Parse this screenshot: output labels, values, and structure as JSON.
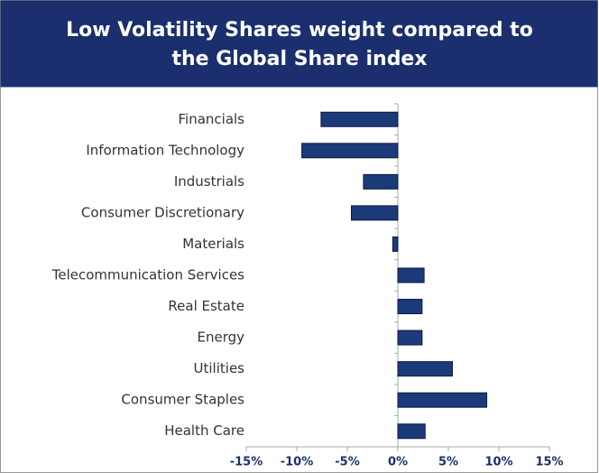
{
  "chart_data": {
    "type": "barh",
    "title": "Low Volatility Shares weight compared to the Global Share index",
    "categories": [
      "Financials",
      "Information Technology",
      "Industrials",
      "Consumer Discretionary",
      "Materials",
      "Telecommunication Services",
      "Real Estate",
      "Energy",
      "Utilities",
      "Consumer Staples",
      "Health Care"
    ],
    "values": [
      -7.6,
      -9.5,
      -3.4,
      -4.6,
      -0.5,
      2.6,
      2.4,
      2.4,
      5.4,
      8.8,
      2.7
    ],
    "color": "#1b3a7a",
    "xlim": [
      -15,
      15
    ],
    "xticks": [
      {
        "value": -15,
        "label": "-15%"
      },
      {
        "value": -10,
        "label": "-10%"
      },
      {
        "value": -5,
        "label": "-5%"
      },
      {
        "value": 0,
        "label": "0%"
      },
      {
        "value": 5,
        "label": "5%"
      },
      {
        "value": 10,
        "label": "10%"
      },
      {
        "value": 15,
        "label": "15%"
      }
    ]
  }
}
